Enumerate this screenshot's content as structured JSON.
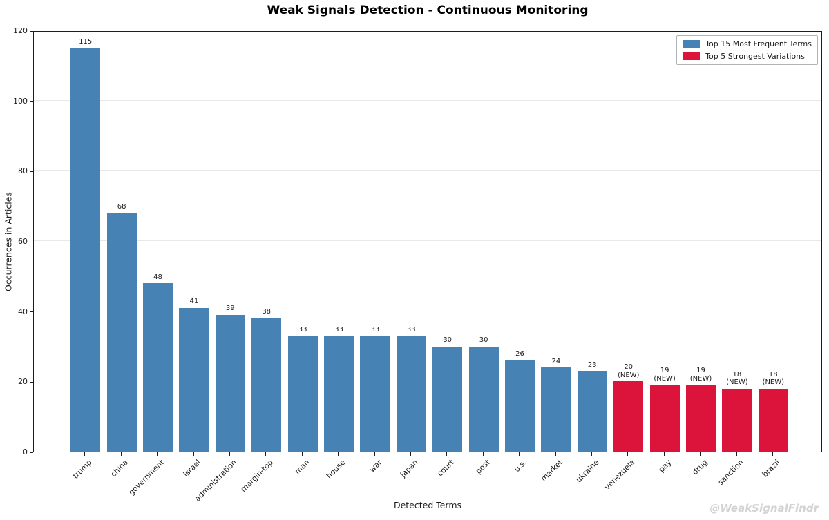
{
  "title": "Weak Signals Detection - Continuous Monitoring",
  "watermark": "@WeakSignalFindr",
  "chart_data": {
    "type": "bar",
    "title": "Weak Signals Detection - Continuous Monitoring",
    "xlabel": "Detected Terms",
    "ylabel": "Occurrences in Articles",
    "ylim": [
      0,
      120
    ],
    "yticks": [
      0,
      20,
      40,
      60,
      80,
      100,
      120
    ],
    "grid": "horizontal",
    "legend_position": "upper right",
    "legend": [
      {
        "label": "Top 15 Most Frequent Terms",
        "color": "#4682b4",
        "group": "frequent"
      },
      {
        "label": "Top 5 Strongest Variations",
        "color": "#dc143c",
        "group": "new"
      }
    ],
    "colors": {
      "frequent": "#4682b4",
      "new": "#dc143c"
    },
    "categories": [
      "trump",
      "china",
      "government",
      "israel",
      "administration",
      "margin-top",
      "man",
      "house",
      "war",
      "japan",
      "court",
      "post",
      "u.s.",
      "market",
      "ukraine",
      "venezuela",
      "pay",
      "drug",
      "sanction",
      "brazil"
    ],
    "values": [
      115,
      68,
      48,
      41,
      39,
      38,
      33,
      33,
      33,
      33,
      30,
      30,
      26,
      24,
      23,
      20,
      19,
      19,
      18,
      18
    ],
    "bar_series": [
      "frequent",
      "frequent",
      "frequent",
      "frequent",
      "frequent",
      "frequent",
      "frequent",
      "frequent",
      "frequent",
      "frequent",
      "frequent",
      "frequent",
      "frequent",
      "frequent",
      "frequent",
      "new",
      "new",
      "new",
      "new",
      "new"
    ],
    "annotations": [
      null,
      null,
      null,
      null,
      null,
      null,
      null,
      null,
      null,
      null,
      null,
      null,
      null,
      null,
      null,
      "(NEW)",
      "(NEW)",
      "(NEW)",
      "(NEW)",
      "(NEW)"
    ]
  }
}
